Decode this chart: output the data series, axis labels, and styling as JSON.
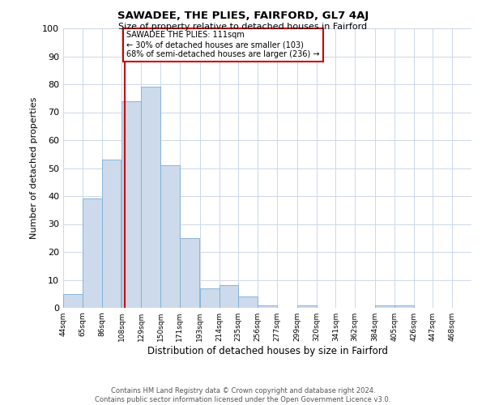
{
  "title": "SAWADEE, THE PLIES, FAIRFORD, GL7 4AJ",
  "subtitle": "Size of property relative to detached houses in Fairford",
  "xlabel": "Distribution of detached houses by size in Fairford",
  "ylabel": "Number of detached properties",
  "bin_labels": [
    "44sqm",
    "65sqm",
    "86sqm",
    "108sqm",
    "129sqm",
    "150sqm",
    "171sqm",
    "193sqm",
    "214sqm",
    "235sqm",
    "256sqm",
    "277sqm",
    "299sqm",
    "320sqm",
    "341sqm",
    "362sqm",
    "384sqm",
    "405sqm",
    "426sqm",
    "447sqm",
    "468sqm"
  ],
  "bin_edges": [
    44,
    65,
    86,
    108,
    129,
    150,
    171,
    193,
    214,
    235,
    256,
    277,
    299,
    320,
    341,
    362,
    384,
    405,
    426,
    447,
    468
  ],
  "counts": [
    5,
    39,
    53,
    74,
    79,
    51,
    25,
    7,
    8,
    4,
    1,
    0,
    1,
    0,
    0,
    0,
    1,
    1,
    0,
    0,
    0
  ],
  "bar_color": "#ccdaeb",
  "bar_edge_color": "#7bafd4",
  "property_value": 111,
  "vline_color": "#cc0000",
  "annotation_line1": "SAWADEE THE PLIES: 111sqm",
  "annotation_line2": "← 30% of detached houses are smaller (103)",
  "annotation_line3": "68% of semi-detached houses are larger (236) →",
  "annotation_box_color": "#ffffff",
  "annotation_box_edge": "#cc0000",
  "footer_text": "Contains HM Land Registry data © Crown copyright and database right 2024.\nContains public sector information licensed under the Open Government Licence v3.0.",
  "ylim": [
    0,
    100
  ],
  "background_color": "#ffffff",
  "grid_color": "#ccd8e8"
}
